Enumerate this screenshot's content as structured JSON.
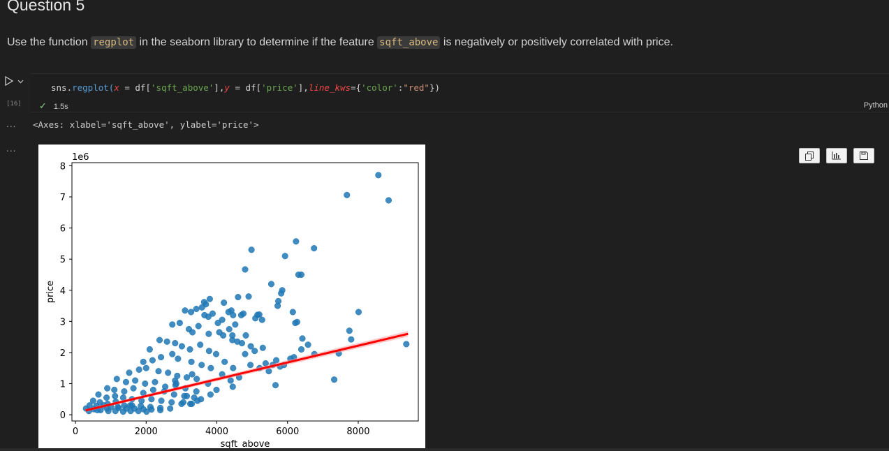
{
  "markdown": {
    "heading": "Question 5",
    "para_before": "Use the function ",
    "code1": "regplot",
    "para_middle": " in the seaborn library to determine if the feature ",
    "code2": "sqft_above",
    "para_after": " is negatively or positively correlated with price."
  },
  "cell": {
    "run_icon": "play-icon",
    "run_chevron": "chevron-down-icon",
    "exec_count": "[16]",
    "code": {
      "p1": "sns.",
      "fn": "regplot",
      "p2": "(",
      "x_kw": "x",
      "p3": " = df[",
      "s1": "'sqft_above'",
      "p4": "],",
      "y_kw": "y",
      "p5": " = df[",
      "s2": "'price'",
      "p6": "],",
      "lk_kw": "line_kws",
      "p7": "={",
      "s3": "'color'",
      "p8": ":",
      "s4": "\"red\"",
      "p9": "})"
    },
    "status_time": "1.5s",
    "language": "Python"
  },
  "output": {
    "dots1": "...",
    "dots2": "...",
    "text": "<Axes: xlabel='sqft_above', ylabel='price'>",
    "toolbar_icons": [
      "copy-icon",
      "chart-icon",
      "save-icon"
    ]
  },
  "colors": {
    "scatter": "#1f77b4",
    "regression": "#ff0000",
    "background": "#1f1f1f"
  },
  "chart_data": {
    "type": "scatter",
    "title": "",
    "xlabel": "sqft_above",
    "ylabel": "price",
    "y_offset_label": "1e6",
    "xlim": [
      -100,
      9700
    ],
    "ylim": [
      -0.2,
      8.1
    ],
    "xticks": [
      0,
      2000,
      4000,
      6000,
      8000
    ],
    "xtick_labels": [
      "0",
      "2000",
      "4000",
      "6000",
      "8000"
    ],
    "yticks": [
      0,
      1,
      2,
      3,
      4,
      5,
      6,
      7,
      8
    ],
    "ytick_labels": [
      "0",
      "1",
      "2",
      "3",
      "4",
      "5",
      "6",
      "7",
      "8"
    ],
    "grid": false,
    "series": [
      {
        "x": [
          8570,
          7680,
          8860,
          6240,
          4980,
          6750,
          5930,
          4800,
          6390,
          6310,
          5540,
          5850,
          5820,
          4600,
          4900,
          5740,
          5720,
          3800,
          4200,
          3640,
          3690,
          3420,
          3580,
          4750,
          4690,
          5150,
          5090,
          5280,
          5200,
          8010,
          7750,
          7800,
          6150,
          6220,
          6270,
          6420,
          6580,
          6760,
          6390,
          9360,
          7450,
          7320,
          5580,
          5790,
          5470,
          5380,
          5680,
          5900,
          6180,
          6080,
          5660,
          3100,
          3270,
          3650,
          3760,
          3880,
          4030,
          4150,
          4330,
          4410,
          4460,
          4520,
          4350,
          4070,
          4440,
          4820,
          4960,
          5070,
          5300,
          2740,
          2950,
          3210,
          3310,
          3480,
          3770,
          4180,
          4440,
          4580,
          4710,
          4800,
          4950,
          5210,
          2100,
          2380,
          2590,
          2820,
          3010,
          3240,
          3530,
          3780,
          3980,
          4220,
          4460,
          4630,
          1920,
          2180,
          2420,
          2740,
          2900,
          3280,
          3570,
          3830,
          4150,
          4390,
          1520,
          1800,
          2000,
          2350,
          2620,
          2880,
          3150,
          3430,
          3750,
          3990,
          1170,
          1430,
          1690,
          1970,
          2250,
          2540,
          2830,
          3110,
          3420,
          900,
          1100,
          1380,
          1640,
          1920,
          2200,
          2510,
          2790,
          3080,
          3360,
          650,
          880,
          1120,
          1350,
          1600,
          1870,
          2150,
          2430,
          2720,
          3000,
          3290,
          500,
          690,
          910,
          1140,
          1380,
          1600,
          1850,
          2120,
          2400,
          2680,
          400,
          590,
          800,
          1010,
          1220,
          1440,
          1670,
          1920,
          2150,
          2400,
          300,
          520,
          710,
          930,
          1130,
          1350,
          1560,
          1780,
          2010,
          380,
          620,
          890,
          1200,
          1550,
          3450,
          3820,
          4450,
          3550,
          3250,
          3300,
          2820,
          2850,
          3150,
          3050
        ],
        "y": [
          7.7,
          7.06,
          6.89,
          5.57,
          5.3,
          5.35,
          5.1,
          4.67,
          4.5,
          4.5,
          4.2,
          4.0,
          3.9,
          3.78,
          3.8,
          3.65,
          3.5,
          3.72,
          3.6,
          3.62,
          3.55,
          3.4,
          3.45,
          3.25,
          3.2,
          3.21,
          3.1,
          3.05,
          3.22,
          3.3,
          2.7,
          2.42,
          3.3,
          2.95,
          2.98,
          2.45,
          2.25,
          1.95,
          2.1,
          2.27,
          1.97,
          1.13,
          1.6,
          1.55,
          1.4,
          1.65,
          1.75,
          1.6,
          1.85,
          1.8,
          0.95,
          3.35,
          3.3,
          3.2,
          3.15,
          3.25,
          2.95,
          3.05,
          3.3,
          3.35,
          3.2,
          2.9,
          2.75,
          2.65,
          2.55,
          2.55,
          2.2,
          2.05,
          2.15,
          2.9,
          2.95,
          2.75,
          2.65,
          2.85,
          2.6,
          2.55,
          2.4,
          2.35,
          2.3,
          1.95,
          1.6,
          1.5,
          2.1,
          2.4,
          2.35,
          2.3,
          2.2,
          2.1,
          2.25,
          2.05,
          1.95,
          1.7,
          1.5,
          1.2,
          1.7,
          1.75,
          1.85,
          1.95,
          1.8,
          1.7,
          1.6,
          1.5,
          1.3,
          1.1,
          1.35,
          1.45,
          1.5,
          1.4,
          1.35,
          1.25,
          1.2,
          1.15,
          1.0,
          0.8,
          1.15,
          1.05,
          1.1,
          1.0,
          1.05,
          0.9,
          0.95,
          0.85,
          0.75,
          0.85,
          0.8,
          0.75,
          0.85,
          0.7,
          0.8,
          0.75,
          0.65,
          0.6,
          0.55,
          0.65,
          0.55,
          0.6,
          0.55,
          0.5,
          0.45,
          0.5,
          0.45,
          0.4,
          0.35,
          0.35,
          0.45,
          0.4,
          0.35,
          0.42,
          0.3,
          0.3,
          0.28,
          0.25,
          0.22,
          0.2,
          0.3,
          0.28,
          0.3,
          0.25,
          0.22,
          0.2,
          0.2,
          0.18,
          0.17,
          0.15,
          0.2,
          0.18,
          0.15,
          0.12,
          0.12,
          0.1,
          0.12,
          0.12,
          0.1,
          0.12,
          0.15,
          0.2,
          0.25,
          0.3,
          0.45,
          0.65,
          0.9,
          0.5,
          0.35,
          1.3,
          1.1,
          1.0,
          0.6,
          0.4
        ],
        "marker_color": "#1f77b4"
      }
    ],
    "regression_line": {
      "x": [
        290,
        9410
      ],
      "y": [
        0.14,
        2.6
      ],
      "color": "red"
    }
  }
}
